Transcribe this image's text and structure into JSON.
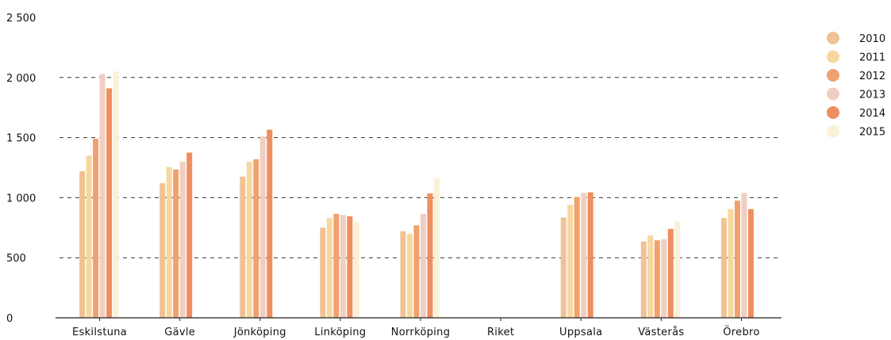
{
  "chart_data": {
    "type": "bar",
    "categories": [
      "Eskilstuna",
      "Gävle",
      "Jönköping",
      "Linköping",
      "Norrköping",
      "Riket",
      "Uppsala",
      "Västerås",
      "Örebro"
    ],
    "series": [
      {
        "name": "2010",
        "color": "#f0c295",
        "values": [
          1220,
          1120,
          1175,
          750,
          720,
          null,
          835,
          635,
          830
        ]
      },
      {
        "name": "2011",
        "color": "#f8d79e",
        "values": [
          1350,
          1255,
          1300,
          830,
          700,
          null,
          940,
          685,
          905
        ]
      },
      {
        "name": "2012",
        "color": "#f0a170",
        "values": [
          1490,
          1235,
          1320,
          865,
          770,
          null,
          1005,
          645,
          975
        ]
      },
      {
        "name": "2013",
        "color": "#f0cfc2",
        "values": [
          2030,
          1300,
          1510,
          855,
          865,
          null,
          1040,
          655,
          1040
        ]
      },
      {
        "name": "2014",
        "color": "#ef8e5e",
        "values": [
          1910,
          1375,
          1565,
          845,
          1035,
          null,
          1045,
          740,
          905
        ]
      },
      {
        "name": "2015",
        "color": "#fbf0d8",
        "values": [
          2050,
          null,
          null,
          800,
          1160,
          null,
          null,
          800,
          null
        ]
      }
    ],
    "yticks": [
      "0",
      "500",
      "1 000",
      "1 500",
      "2 000",
      "2 500"
    ],
    "ylim": [
      0,
      2500
    ],
    "grid": "dashed horizontal",
    "legend": "right"
  }
}
